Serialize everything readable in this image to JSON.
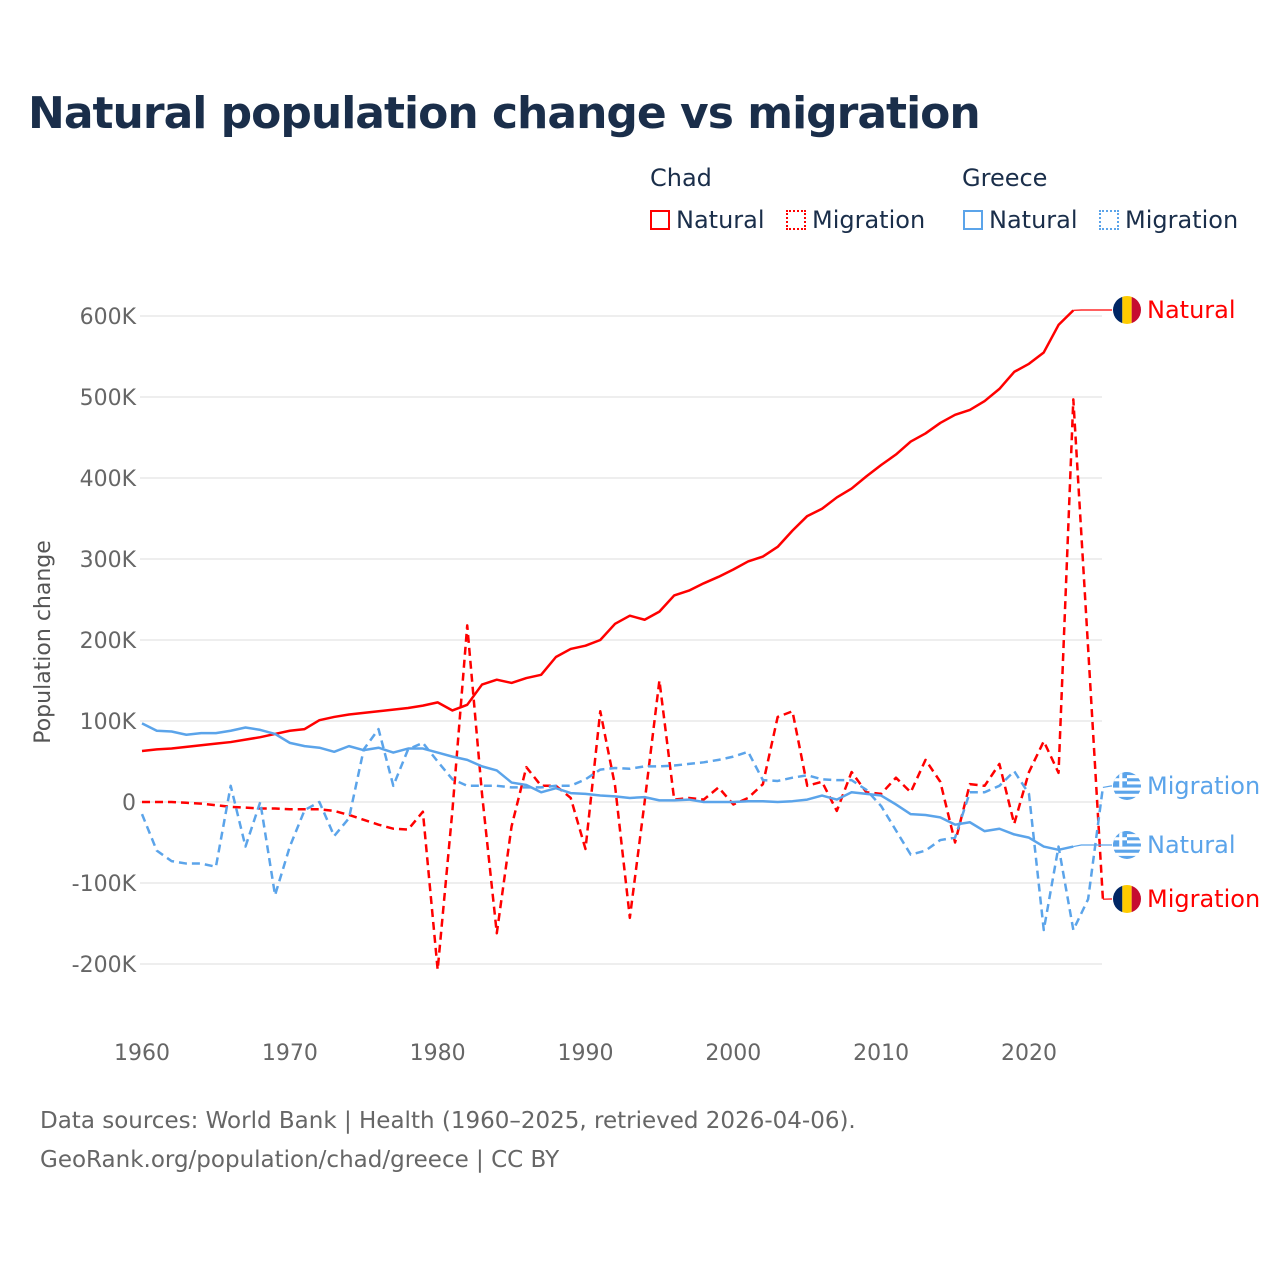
{
  "title": "Natural population change vs migration",
  "legend": {
    "groups": [
      {
        "country": "Chad",
        "items": [
          "Natural",
          "Migration"
        ]
      },
      {
        "country": "Greece",
        "items": [
          "Natural",
          "Migration"
        ]
      }
    ]
  },
  "footer": {
    "line1": "Data sources: World Bank | Health (1960–2025, retrieved 2026-04-06).",
    "line2": "GeoRank.org/population/chad/greece | CC BY"
  },
  "chart_data": {
    "type": "line",
    "title": "Natural population change vs migration",
    "xlabel": "",
    "ylabel": "Population change",
    "xlim": [
      1960,
      2025
    ],
    "ylim": [
      -250000,
      650000
    ],
    "x_ticks": [
      "1960",
      "1970",
      "1980",
      "1990",
      "2000",
      "2010",
      "2020"
    ],
    "y_ticks": [
      {
        "v": 600000,
        "label": "600K"
      },
      {
        "v": 500000,
        "label": "500K"
      },
      {
        "v": 400000,
        "label": "400K"
      },
      {
        "v": 300000,
        "label": "300K"
      },
      {
        "v": 200000,
        "label": "200K"
      },
      {
        "v": 100000,
        "label": "100K"
      },
      {
        "v": 0,
        "label": "0"
      },
      {
        "v": -100000,
        "label": "-100K"
      },
      {
        "v": -200000,
        "label": "-200K"
      }
    ],
    "grid": true,
    "legend_position": "top-right",
    "start_year": 1960,
    "series": [
      {
        "name": "Chad Natural",
        "end_label": "Natural",
        "color": "#ff0000",
        "dash": false,
        "flag": "chad",
        "values": [
          63,
          65,
          66,
          68,
          70,
          72,
          74,
          77,
          80,
          84,
          88,
          90,
          101,
          105,
          108,
          110,
          112,
          114,
          116,
          119,
          123,
          113,
          120,
          145,
          151,
          147,
          153,
          157,
          179,
          189,
          193,
          200,
          220,
          230,
          225,
          235,
          255,
          261,
          270,
          278,
          287,
          297,
          303,
          315,
          335,
          353,
          362,
          376,
          387,
          402,
          416,
          429,
          445,
          455,
          468,
          478,
          484,
          495,
          510,
          531,
          541,
          555,
          589,
          607
        ]
      },
      {
        "name": "Chad Migration",
        "end_label": "Migration",
        "color": "#ff0000",
        "dash": true,
        "flag": "chad",
        "values": [
          0,
          0,
          0,
          -1,
          -2,
          -4,
          -6,
          -7,
          -8,
          -8,
          -9,
          -9,
          -9,
          -11,
          -16,
          -22,
          -28,
          -33,
          -34,
          -12,
          -207,
          -10,
          218,
          10,
          -162,
          -30,
          43,
          20,
          20,
          5,
          -58,
          112,
          20,
          -143,
          0,
          150,
          3,
          5,
          3,
          18,
          -3,
          5,
          22,
          105,
          112,
          20,
          25,
          -11,
          37,
          12,
          10,
          30,
          12,
          52,
          25,
          -50,
          22,
          20,
          47,
          -27,
          37,
          75,
          36,
          497,
          190,
          -120
        ]
      },
      {
        "name": "Greece Natural",
        "end_label": "Natural",
        "color": "#5ba4ea",
        "dash": false,
        "flag": "greece",
        "values": [
          97,
          88,
          87,
          83,
          85,
          85,
          88,
          92,
          89,
          84,
          73,
          69,
          67,
          62,
          69,
          64,
          67,
          61,
          66,
          66,
          61,
          56,
          52,
          44,
          39,
          24,
          21,
          12,
          17,
          11,
          10,
          8,
          7,
          5,
          6,
          2,
          2,
          3,
          0,
          0,
          0,
          1,
          1,
          0,
          1,
          3,
          8,
          3,
          12,
          10,
          8,
          -3,
          -15,
          -16,
          -19,
          -28,
          -25,
          -36,
          -33,
          -40,
          -44,
          -55,
          -59,
          -55
        ]
      },
      {
        "name": "Greece Migration",
        "end_label": "Migration",
        "color": "#5ba4ea",
        "dash": true,
        "flag": "greece",
        "values": [
          -15,
          -60,
          -73,
          -76,
          -76,
          -80,
          20,
          -55,
          0,
          -115,
          -55,
          -10,
          0,
          -42,
          -20,
          65,
          90,
          20,
          65,
          73,
          50,
          28,
          20,
          20,
          20,
          18,
          18,
          18,
          20,
          20,
          28,
          40,
          42,
          41,
          44,
          44,
          45,
          47,
          49,
          52,
          56,
          62,
          27,
          26,
          30,
          33,
          28,
          27,
          27,
          15,
          -5,
          -35,
          -65,
          -60,
          -47,
          -44,
          12,
          12,
          20,
          38,
          10,
          -158,
          -55,
          -158,
          -120,
          18
        ]
      }
    ],
    "value_units": "thousands"
  }
}
